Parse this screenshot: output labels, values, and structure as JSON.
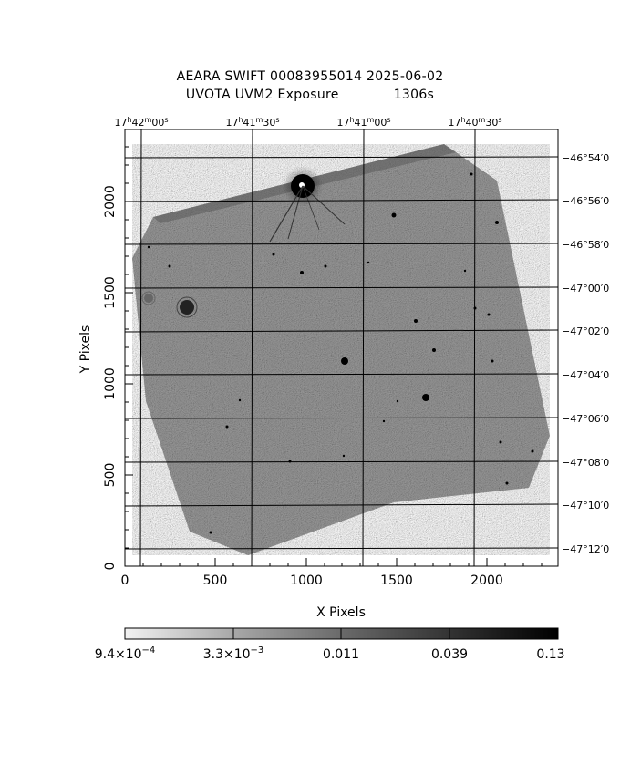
{
  "title": {
    "line1": "AEARA SWIFT 00083955014 2025-06-02",
    "line2_left": "UVOTA UVM2 Exposure",
    "line2_right": "1306s"
  },
  "axes": {
    "xlabel": "X Pixels",
    "ylabel": "Y Pixels",
    "x_ticks": [
      "0",
      "500",
      "1000",
      "1500",
      "2000"
    ],
    "y_ticks": [
      "0",
      "500",
      "1000",
      "1500",
      "2000"
    ]
  },
  "ra_labels": [
    {
      "h": "17",
      "m": "42",
      "s": "00"
    },
    {
      "h": "17",
      "m": "41",
      "s": "30"
    },
    {
      "h": "17",
      "m": "41",
      "s": "00"
    },
    {
      "h": "17",
      "m": "40",
      "s": "30"
    }
  ],
  "dec_labels": [
    "−46°54′0",
    "−46°56′0",
    "−46°58′0",
    "−47°00′0",
    "−47°02′0",
    "−47°04′0",
    "−47°06′0",
    "−47°08′0",
    "−47°10′0",
    "−47°12′0"
  ],
  "colorbar": {
    "labels": [
      {
        "mant": "9.4×10",
        "exp": "−4"
      },
      {
        "mant": "3.3×10",
        "exp": "−3"
      },
      {
        "mant": "0.011",
        "exp": ""
      },
      {
        "mant": "0.039",
        "exp": ""
      },
      {
        "mant": "0.13",
        "exp": ""
      }
    ]
  }
}
